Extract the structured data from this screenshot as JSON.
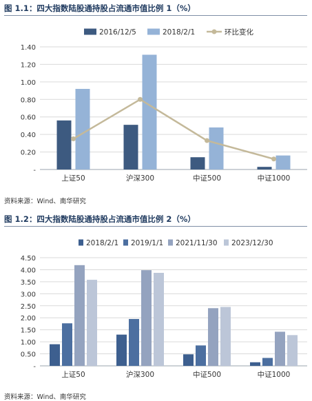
{
  "chart_data": [
    {
      "type": "bar",
      "title": "图 1.1：四大指数陆股通持股占流通市值比例 1（%）",
      "source": "资料来源：Wind、南华研究",
      "categories": [
        "上证50",
        "沪深300",
        "中证500",
        "中证1000"
      ],
      "ylim": [
        0,
        1.4
      ],
      "yticks": [
        0,
        0.2,
        0.4,
        0.6,
        0.8,
        1.0,
        1.2,
        1.4
      ],
      "ytick_labels": [
        "-",
        "0.20",
        "0.40",
        "0.60",
        "0.80",
        "1.00",
        "1.20",
        "1.40"
      ],
      "legend_position": "top",
      "series": [
        {
          "name": "2016/12/5",
          "kind": "bar",
          "color": "#3d5a80",
          "values": [
            0.56,
            0.51,
            0.14,
            0.03
          ]
        },
        {
          "name": "2018/2/1",
          "kind": "bar",
          "color": "#95b3d7",
          "values": [
            0.92,
            1.31,
            0.48,
            0.16
          ]
        },
        {
          "name": "环比变化",
          "kind": "line",
          "color": "#c4b99a",
          "values": [
            0.35,
            0.8,
            0.33,
            0.12
          ]
        }
      ]
    },
    {
      "type": "bar",
      "title": "图 1.2：四大指数陆股通持股占流通市值比例 2（%）",
      "source": "资料来源：Wind、南华研究",
      "categories": [
        "上证50",
        "沪深300",
        "中证500",
        "中证1000"
      ],
      "ylim": [
        0,
        4.5
      ],
      "yticks": [
        0,
        0.5,
        1.0,
        1.5,
        2.0,
        2.5,
        3.0,
        3.5,
        4.0,
        4.5
      ],
      "ytick_labels": [
        "-",
        "0.50",
        "1.00",
        "1.50",
        "2.00",
        "2.50",
        "3.00",
        "3.50",
        "4.00",
        "4.50"
      ],
      "legend_position": "top",
      "series": [
        {
          "name": "2018/2/1",
          "kind": "bar",
          "color": "#3d5f8f",
          "values": [
            0.9,
            1.3,
            0.48,
            0.15
          ]
        },
        {
          "name": "2019/1/1",
          "kind": "bar",
          "color": "#4c6fa0",
          "values": [
            1.77,
            1.95,
            0.85,
            0.33
          ]
        },
        {
          "name": "2021/11/30",
          "kind": "bar",
          "color": "#94a3bf",
          "values": [
            4.19,
            3.98,
            2.4,
            1.42
          ]
        },
        {
          "name": "2023/12/30",
          "kind": "bar",
          "color": "#bcc6d8",
          "values": [
            3.58,
            3.87,
            2.45,
            1.28
          ]
        }
      ]
    }
  ]
}
